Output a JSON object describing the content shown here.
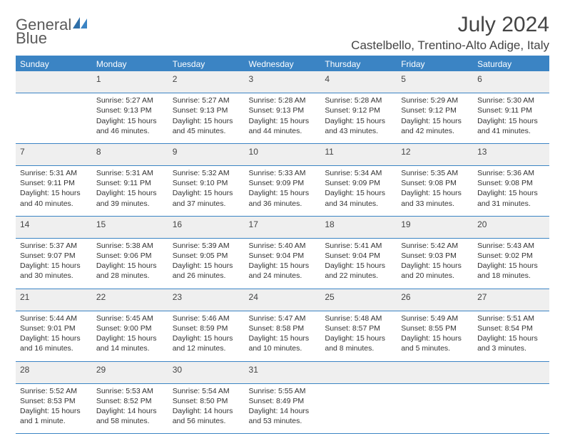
{
  "brand": {
    "name_gray": "General",
    "name_blue": "Blue"
  },
  "title": "July 2024",
  "location": "Castelbello, Trentino-Alto Adige, Italy",
  "colors": {
    "accent": "#3b84c4",
    "header_text": "#ffffff",
    "body_text": "#333333",
    "shaded_bg": "#efefef"
  },
  "weekdays": [
    "Sunday",
    "Monday",
    "Tuesday",
    "Wednesday",
    "Thursday",
    "Friday",
    "Saturday"
  ],
  "weeks": [
    {
      "shaded_daynum_row": true,
      "days": [
        {
          "num": "",
          "lines": [],
          "empty": true
        },
        {
          "num": "1",
          "lines": [
            "Sunrise: 5:27 AM",
            "Sunset: 9:13 PM",
            "Daylight: 15 hours",
            "and 46 minutes."
          ]
        },
        {
          "num": "2",
          "lines": [
            "Sunrise: 5:27 AM",
            "Sunset: 9:13 PM",
            "Daylight: 15 hours",
            "and 45 minutes."
          ]
        },
        {
          "num": "3",
          "lines": [
            "Sunrise: 5:28 AM",
            "Sunset: 9:13 PM",
            "Daylight: 15 hours",
            "and 44 minutes."
          ]
        },
        {
          "num": "4",
          "lines": [
            "Sunrise: 5:28 AM",
            "Sunset: 9:12 PM",
            "Daylight: 15 hours",
            "and 43 minutes."
          ]
        },
        {
          "num": "5",
          "lines": [
            "Sunrise: 5:29 AM",
            "Sunset: 9:12 PM",
            "Daylight: 15 hours",
            "and 42 minutes."
          ]
        },
        {
          "num": "6",
          "lines": [
            "Sunrise: 5:30 AM",
            "Sunset: 9:11 PM",
            "Daylight: 15 hours",
            "and 41 minutes."
          ]
        }
      ]
    },
    {
      "shaded_daynum_row": true,
      "days": [
        {
          "num": "7",
          "lines": [
            "Sunrise: 5:31 AM",
            "Sunset: 9:11 PM",
            "Daylight: 15 hours",
            "and 40 minutes."
          ]
        },
        {
          "num": "8",
          "lines": [
            "Sunrise: 5:31 AM",
            "Sunset: 9:11 PM",
            "Daylight: 15 hours",
            "and 39 minutes."
          ]
        },
        {
          "num": "9",
          "lines": [
            "Sunrise: 5:32 AM",
            "Sunset: 9:10 PM",
            "Daylight: 15 hours",
            "and 37 minutes."
          ]
        },
        {
          "num": "10",
          "lines": [
            "Sunrise: 5:33 AM",
            "Sunset: 9:09 PM",
            "Daylight: 15 hours",
            "and 36 minutes."
          ]
        },
        {
          "num": "11",
          "lines": [
            "Sunrise: 5:34 AM",
            "Sunset: 9:09 PM",
            "Daylight: 15 hours",
            "and 34 minutes."
          ]
        },
        {
          "num": "12",
          "lines": [
            "Sunrise: 5:35 AM",
            "Sunset: 9:08 PM",
            "Daylight: 15 hours",
            "and 33 minutes."
          ]
        },
        {
          "num": "13",
          "lines": [
            "Sunrise: 5:36 AM",
            "Sunset: 9:08 PM",
            "Daylight: 15 hours",
            "and 31 minutes."
          ]
        }
      ]
    },
    {
      "shaded_daynum_row": true,
      "days": [
        {
          "num": "14",
          "lines": [
            "Sunrise: 5:37 AM",
            "Sunset: 9:07 PM",
            "Daylight: 15 hours",
            "and 30 minutes."
          ]
        },
        {
          "num": "15",
          "lines": [
            "Sunrise: 5:38 AM",
            "Sunset: 9:06 PM",
            "Daylight: 15 hours",
            "and 28 minutes."
          ]
        },
        {
          "num": "16",
          "lines": [
            "Sunrise: 5:39 AM",
            "Sunset: 9:05 PM",
            "Daylight: 15 hours",
            "and 26 minutes."
          ]
        },
        {
          "num": "17",
          "lines": [
            "Sunrise: 5:40 AM",
            "Sunset: 9:04 PM",
            "Daylight: 15 hours",
            "and 24 minutes."
          ]
        },
        {
          "num": "18",
          "lines": [
            "Sunrise: 5:41 AM",
            "Sunset: 9:04 PM",
            "Daylight: 15 hours",
            "and 22 minutes."
          ]
        },
        {
          "num": "19",
          "lines": [
            "Sunrise: 5:42 AM",
            "Sunset: 9:03 PM",
            "Daylight: 15 hours",
            "and 20 minutes."
          ]
        },
        {
          "num": "20",
          "lines": [
            "Sunrise: 5:43 AM",
            "Sunset: 9:02 PM",
            "Daylight: 15 hours",
            "and 18 minutes."
          ]
        }
      ]
    },
    {
      "shaded_daynum_row": true,
      "days": [
        {
          "num": "21",
          "lines": [
            "Sunrise: 5:44 AM",
            "Sunset: 9:01 PM",
            "Daylight: 15 hours",
            "and 16 minutes."
          ]
        },
        {
          "num": "22",
          "lines": [
            "Sunrise: 5:45 AM",
            "Sunset: 9:00 PM",
            "Daylight: 15 hours",
            "and 14 minutes."
          ]
        },
        {
          "num": "23",
          "lines": [
            "Sunrise: 5:46 AM",
            "Sunset: 8:59 PM",
            "Daylight: 15 hours",
            "and 12 minutes."
          ]
        },
        {
          "num": "24",
          "lines": [
            "Sunrise: 5:47 AM",
            "Sunset: 8:58 PM",
            "Daylight: 15 hours",
            "and 10 minutes."
          ]
        },
        {
          "num": "25",
          "lines": [
            "Sunrise: 5:48 AM",
            "Sunset: 8:57 PM",
            "Daylight: 15 hours",
            "and 8 minutes."
          ]
        },
        {
          "num": "26",
          "lines": [
            "Sunrise: 5:49 AM",
            "Sunset: 8:55 PM",
            "Daylight: 15 hours",
            "and 5 minutes."
          ]
        },
        {
          "num": "27",
          "lines": [
            "Sunrise: 5:51 AM",
            "Sunset: 8:54 PM",
            "Daylight: 15 hours",
            "and 3 minutes."
          ]
        }
      ]
    },
    {
      "shaded_daynum_row": true,
      "days": [
        {
          "num": "28",
          "lines": [
            "Sunrise: 5:52 AM",
            "Sunset: 8:53 PM",
            "Daylight: 15 hours",
            "and 1 minute."
          ]
        },
        {
          "num": "29",
          "lines": [
            "Sunrise: 5:53 AM",
            "Sunset: 8:52 PM",
            "Daylight: 14 hours",
            "and 58 minutes."
          ]
        },
        {
          "num": "30",
          "lines": [
            "Sunrise: 5:54 AM",
            "Sunset: 8:50 PM",
            "Daylight: 14 hours",
            "and 56 minutes."
          ]
        },
        {
          "num": "31",
          "lines": [
            "Sunrise: 5:55 AM",
            "Sunset: 8:49 PM",
            "Daylight: 14 hours",
            "and 53 minutes."
          ]
        },
        {
          "num": "",
          "lines": [],
          "empty": true
        },
        {
          "num": "",
          "lines": [],
          "empty": true
        },
        {
          "num": "",
          "lines": [],
          "empty": true
        }
      ]
    }
  ]
}
